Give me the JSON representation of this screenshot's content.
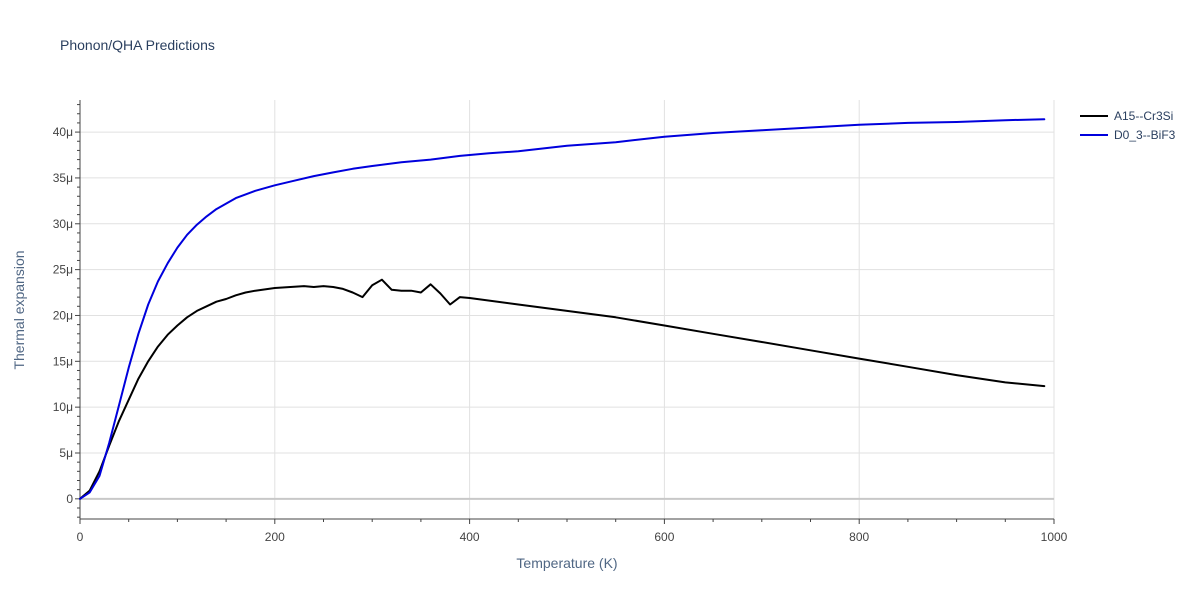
{
  "chart_data": {
    "type": "line",
    "title": "Phonon/QHA Predictions",
    "xlabel": "Temperature (K)",
    "ylabel": "Thermal expansion",
    "xlim": [
      0,
      1000
    ],
    "ylim": [
      -2.2e-06,
      4.35e-05
    ],
    "x_ticks": [
      0,
      200,
      400,
      600,
      800,
      1000
    ],
    "x_tick_labels": [
      "0",
      "200",
      "400",
      "600",
      "800",
      "1000"
    ],
    "y_ticks": [
      0,
      5e-06,
      1e-05,
      1.5e-05,
      2e-05,
      2.5e-05,
      3e-05,
      3.5e-05,
      4e-05
    ],
    "y_tick_labels": [
      "0",
      "5μ",
      "10μ",
      "15μ",
      "20μ",
      "25μ",
      "30μ",
      "35μ",
      "40μ"
    ],
    "grid": true,
    "legend_position": "top-right",
    "series": [
      {
        "name": "A15--Cr3Si",
        "color": "#000000",
        "x": [
          0,
          10,
          20,
          30,
          40,
          50,
          60,
          70,
          80,
          90,
          100,
          110,
          120,
          130,
          140,
          150,
          160,
          170,
          180,
          200,
          230,
          240,
          250,
          260,
          270,
          280,
          290,
          300,
          310,
          320,
          330,
          340,
          350,
          360,
          370,
          380,
          390,
          400,
          450,
          500,
          550,
          600,
          650,
          700,
          750,
          800,
          850,
          900,
          950,
          990
        ],
        "y": [
          0,
          9e-07,
          3e-06,
          5.8e-06,
          8.5e-06,
          1.08e-05,
          1.31e-05,
          1.5e-05,
          1.66e-05,
          1.79e-05,
          1.89e-05,
          1.98e-05,
          2.05e-05,
          2.1e-05,
          2.15e-05,
          2.18e-05,
          2.22e-05,
          2.25e-05,
          2.27e-05,
          2.3e-05,
          2.32e-05,
          2.31e-05,
          2.32e-05,
          2.31e-05,
          2.29e-05,
          2.25e-05,
          2.2e-05,
          2.33e-05,
          2.39e-05,
          2.28e-05,
          2.27e-05,
          2.27e-05,
          2.25e-05,
          2.34e-05,
          2.24e-05,
          2.12e-05,
          2.2e-05,
          2.19e-05,
          2.12e-05,
          2.05e-05,
          1.98e-05,
          1.89e-05,
          1.8e-05,
          1.71e-05,
          1.62e-05,
          1.53e-05,
          1.44e-05,
          1.35e-05,
          1.27e-05,
          1.23e-05
        ]
      },
      {
        "name": "D0_3--BiF3",
        "color": "#0000dd",
        "x": [
          0,
          10,
          20,
          30,
          40,
          50,
          60,
          70,
          80,
          90,
          100,
          110,
          120,
          130,
          140,
          150,
          160,
          170,
          180,
          200,
          220,
          240,
          260,
          280,
          300,
          330,
          360,
          390,
          420,
          450,
          500,
          550,
          600,
          650,
          700,
          750,
          800,
          850,
          900,
          950,
          990
        ],
        "y": [
          0,
          7e-07,
          2.5e-06,
          6.1e-06,
          1.02e-05,
          1.43e-05,
          1.8e-05,
          2.12e-05,
          2.37e-05,
          2.57e-05,
          2.74e-05,
          2.88e-05,
          2.99e-05,
          3.08e-05,
          3.16e-05,
          3.22e-05,
          3.28e-05,
          3.32e-05,
          3.36e-05,
          3.42e-05,
          3.47e-05,
          3.52e-05,
          3.56e-05,
          3.6e-05,
          3.63e-05,
          3.67e-05,
          3.7e-05,
          3.74e-05,
          3.77e-05,
          3.79e-05,
          3.85e-05,
          3.89e-05,
          3.95e-05,
          3.99e-05,
          4.02e-05,
          4.05e-05,
          4.08e-05,
          4.1e-05,
          4.11e-05,
          4.13e-05,
          4.14e-05
        ]
      }
    ]
  }
}
